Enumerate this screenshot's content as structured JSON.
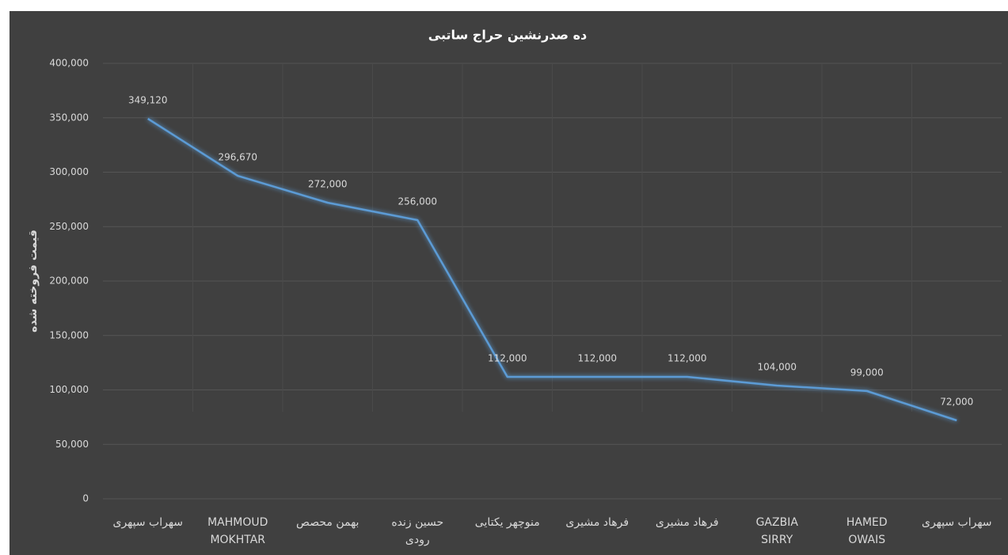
{
  "chart_data": {
    "type": "line",
    "title": "ده صدرنشین حراج ساتبی",
    "y_label": "قیمت فروخته شده",
    "categories": [
      "سهراب سپهری",
      "MAHMOUD MOKHTAR",
      "بهمن محصص",
      "حسین زنده رودی",
      "منوچهر یکتایی",
      "فرهاد مشیری",
      "فرهاد مشیری",
      "GAZBIA SIRRY",
      "HAMED OWAIS",
      "سهراب سپهری"
    ],
    "series": [
      {
        "name": "قیمت فروخته شده",
        "color": "#5b9bd5",
        "values": [
          349120,
          296670,
          272000,
          256000,
          112000,
          112000,
          112000,
          104000,
          99000,
          72000
        ],
        "value_labels": [
          "349,120",
          "296,670",
          "272,000",
          "256,000",
          "112,000",
          "112,000",
          "112,000",
          "104,000",
          "99,000",
          "72,000"
        ]
      }
    ],
    "ylim": [
      0,
      400000
    ],
    "yticks": [
      0,
      {
        "value": 50000,
        "label": "50,000"
      },
      {
        "value": 100000,
        "label": "100,000"
      },
      {
        "value": 150000,
        "label": "150,000"
      },
      {
        "value": 200000,
        "label": "200,000"
      },
      {
        "value": 250000,
        "label": "250,000"
      },
      {
        "value": 300000,
        "label": "300,000"
      },
      {
        "value": 350000,
        "label": "350,000"
      },
      {
        "value": 400000,
        "label": "400,000"
      }
    ],
    "grid": true
  }
}
